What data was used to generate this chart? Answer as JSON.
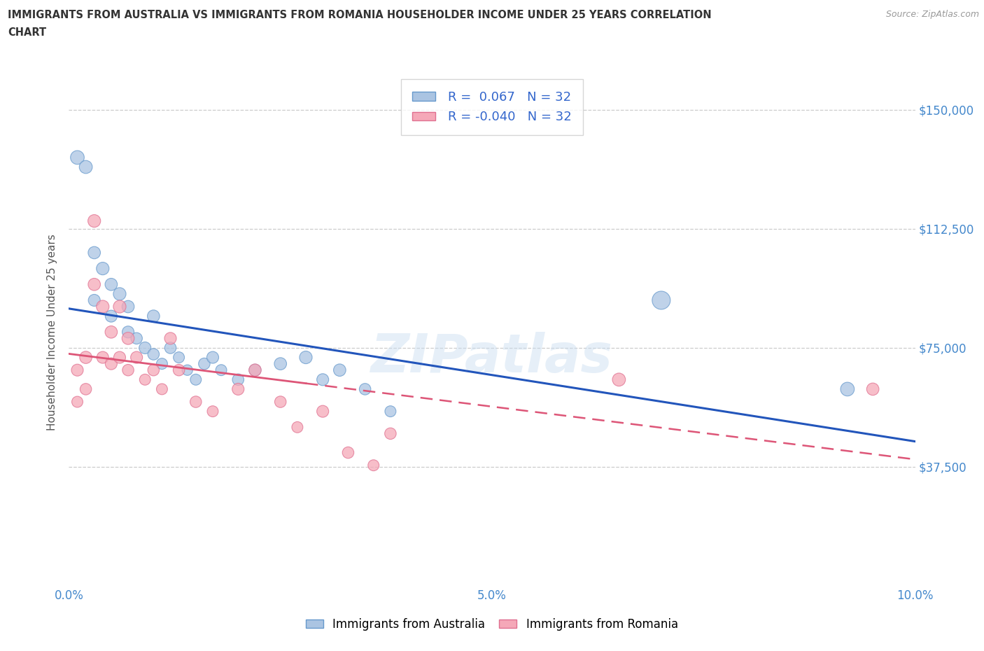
{
  "title_line1": "IMMIGRANTS FROM AUSTRALIA VS IMMIGRANTS FROM ROMANIA HOUSEHOLDER INCOME UNDER 25 YEARS CORRELATION",
  "title_line2": "CHART",
  "source": "Source: ZipAtlas.com",
  "ylabel": "Householder Income Under 25 years",
  "xlim": [
    0,
    0.1
  ],
  "ylim": [
    0,
    160000
  ],
  "yticks": [
    0,
    37500,
    75000,
    112500,
    150000
  ],
  "ytick_labels": [
    "",
    "$37,500",
    "$75,000",
    "$112,500",
    "$150,000"
  ],
  "xtick_vals": [
    0.0,
    0.01,
    0.02,
    0.03,
    0.04,
    0.05,
    0.06,
    0.07,
    0.08,
    0.09,
    0.1
  ],
  "xtick_labels": [
    "0.0%",
    "",
    "",
    "",
    "",
    "5.0%",
    "",
    "",
    "",
    "",
    "10.0%"
  ],
  "R_australia": 0.067,
  "N_australia": 32,
  "R_romania": -0.04,
  "N_romania": 32,
  "australia_color": "#aac4e2",
  "romania_color": "#f5a8b8",
  "aus_edge_color": "#6699cc",
  "rom_edge_color": "#e07090",
  "trendline_australia_color": "#2255bb",
  "trendline_romania_color": "#dd5577",
  "australia_x": [
    0.001,
    0.002,
    0.003,
    0.003,
    0.004,
    0.005,
    0.005,
    0.006,
    0.007,
    0.007,
    0.008,
    0.009,
    0.01,
    0.01,
    0.011,
    0.012,
    0.013,
    0.014,
    0.015,
    0.016,
    0.017,
    0.018,
    0.02,
    0.022,
    0.025,
    0.028,
    0.03,
    0.032,
    0.035,
    0.038,
    0.07,
    0.092
  ],
  "australia_y": [
    135000,
    132000,
    90000,
    105000,
    100000,
    95000,
    85000,
    92000,
    88000,
    80000,
    78000,
    75000,
    85000,
    73000,
    70000,
    75000,
    72000,
    68000,
    65000,
    70000,
    72000,
    68000,
    65000,
    68000,
    70000,
    72000,
    65000,
    68000,
    62000,
    55000,
    90000,
    62000
  ],
  "australia_size": [
    200,
    180,
    150,
    160,
    170,
    160,
    150,
    170,
    160,
    150,
    140,
    150,
    160,
    140,
    130,
    140,
    130,
    120,
    130,
    140,
    150,
    130,
    140,
    150,
    160,
    170,
    150,
    160,
    140,
    130,
    350,
    200
  ],
  "romania_x": [
    0.001,
    0.001,
    0.002,
    0.002,
    0.003,
    0.003,
    0.004,
    0.004,
    0.005,
    0.005,
    0.006,
    0.006,
    0.007,
    0.007,
    0.008,
    0.009,
    0.01,
    0.011,
    0.012,
    0.013,
    0.015,
    0.017,
    0.02,
    0.022,
    0.025,
    0.027,
    0.03,
    0.033,
    0.036,
    0.038,
    0.065,
    0.095
  ],
  "romania_y": [
    68000,
    58000,
    72000,
    62000,
    115000,
    95000,
    88000,
    72000,
    80000,
    70000,
    88000,
    72000,
    78000,
    68000,
    72000,
    65000,
    68000,
    62000,
    78000,
    68000,
    58000,
    55000,
    62000,
    68000,
    58000,
    50000,
    55000,
    42000,
    38000,
    48000,
    65000,
    62000
  ],
  "romania_size": [
    150,
    130,
    160,
    140,
    170,
    160,
    170,
    150,
    160,
    150,
    170,
    150,
    160,
    140,
    150,
    130,
    140,
    130,
    150,
    140,
    140,
    130,
    150,
    160,
    140,
    130,
    150,
    140,
    130,
    140,
    180,
    160
  ],
  "watermark": "ZIPatlas",
  "background_color": "#ffffff",
  "grid_color": "#cccccc"
}
